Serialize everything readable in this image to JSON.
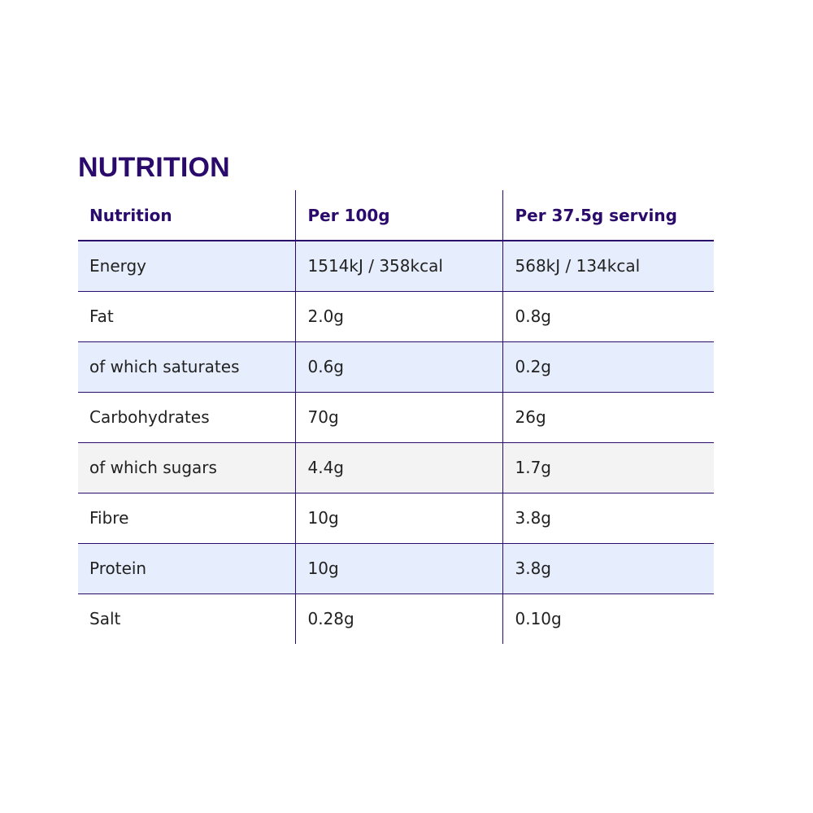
{
  "title": "NUTRITION",
  "table": {
    "headers": [
      "Nutrition",
      "Per 100g",
      "Per 37.5g serving"
    ],
    "rows": [
      {
        "cells": [
          "Energy",
          "1514kJ / 358kcal",
          "568kJ / 134kcal"
        ],
        "shade": "blue"
      },
      {
        "cells": [
          "Fat",
          "2.0g",
          "0.8g"
        ],
        "shade": "none"
      },
      {
        "cells": [
          "of which saturates",
          "0.6g",
          "0.2g"
        ],
        "shade": "blue"
      },
      {
        "cells": [
          "Carbohydrates",
          "70g",
          "26g"
        ],
        "shade": "none"
      },
      {
        "cells": [
          "of which sugars",
          "4.4g",
          "1.7g"
        ],
        "shade": "grey"
      },
      {
        "cells": [
          "Fibre",
          "10g",
          "3.8g"
        ],
        "shade": "none"
      },
      {
        "cells": [
          "Protein",
          "10g",
          "3.8g"
        ],
        "shade": "blue"
      },
      {
        "cells": [
          "Salt",
          "0.28g",
          "0.10g"
        ],
        "shade": "none"
      }
    ]
  },
  "colors": {
    "brand_purple": "#2a0a6b",
    "row_blue": "#e6edfc",
    "row_grey": "#f3f3f3",
    "text": "#222222"
  }
}
